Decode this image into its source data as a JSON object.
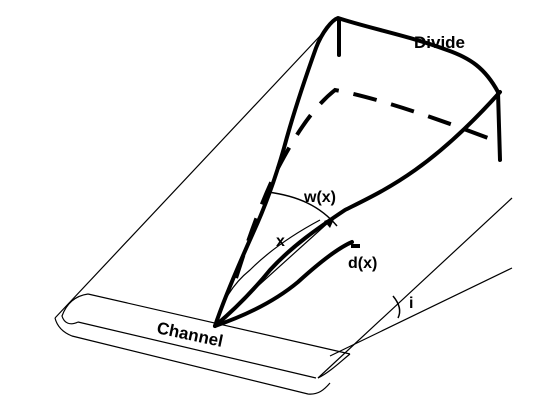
{
  "labels": {
    "divide": "Divide",
    "width": "w(x)",
    "distance": "x",
    "depth": "d(x)",
    "slope": "i",
    "channel": "Channel"
  },
  "colors": {
    "ink": "#000000",
    "background": "#ffffff"
  }
}
